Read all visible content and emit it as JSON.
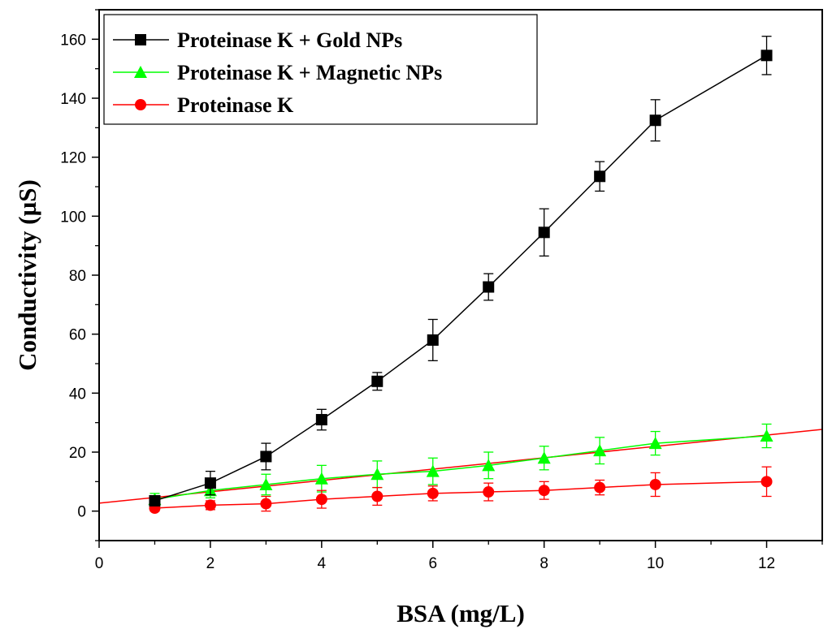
{
  "chart_data": {
    "type": "line",
    "xlabel": "BSA (mg/L)",
    "ylabel": "Conductivity (µS)",
    "xlim": [
      0,
      13
    ],
    "ylim": [
      -10,
      170
    ],
    "x_ticks": [
      "0",
      "2",
      "4",
      "6",
      "8",
      "10",
      "12"
    ],
    "y_ticks": [
      "0",
      "20",
      "40",
      "60",
      "80",
      "100",
      "120",
      "140",
      "160"
    ],
    "legend_position": "top-left",
    "series": [
      {
        "name": "Proteinase K + Gold NPs",
        "color": "#000000",
        "marker": "square",
        "x": [
          1,
          2,
          3,
          4,
          5,
          6,
          7,
          8,
          9,
          10,
          12
        ],
        "y": [
          3.5,
          9.5,
          18.5,
          31,
          44,
          58,
          76,
          94.5,
          113.5,
          132.5,
          154.5
        ],
        "err": [
          1.5,
          4.0,
          4.5,
          3.5,
          3.0,
          7.0,
          4.5,
          8.0,
          5.0,
          7.0,
          6.5
        ]
      },
      {
        "name": "Proteinase K + Magnetic NPs",
        "color": "#00ff00",
        "marker": "triangle",
        "x": [
          1,
          2,
          3,
          4,
          5,
          6,
          7,
          8,
          9,
          10,
          12
        ],
        "y": [
          4,
          7,
          9,
          11,
          12.5,
          13.5,
          15.5,
          18,
          20.5,
          23,
          25.5
        ],
        "err": [
          2.0,
          2.5,
          3.5,
          4.5,
          4.5,
          4.5,
          4.5,
          4.0,
          4.5,
          4.0,
          4.0
        ]
      },
      {
        "name": "Proteinase K",
        "color": "#ff0000",
        "marker": "circle",
        "x": [
          1,
          2,
          3,
          4,
          5,
          6,
          7,
          8,
          9,
          10,
          12
        ],
        "y": [
          1,
          2,
          2.5,
          4,
          5,
          6,
          6.5,
          7,
          8,
          9,
          10
        ],
        "err": [
          1.0,
          1.5,
          2.5,
          3.0,
          3.0,
          2.5,
          3.0,
          3.0,
          2.5,
          4.0,
          5.0
        ]
      }
    ],
    "fit_line": {
      "color": "#ff0000",
      "x": [
        0,
        13
      ],
      "y": [
        2.7,
        27.7
      ]
    }
  }
}
